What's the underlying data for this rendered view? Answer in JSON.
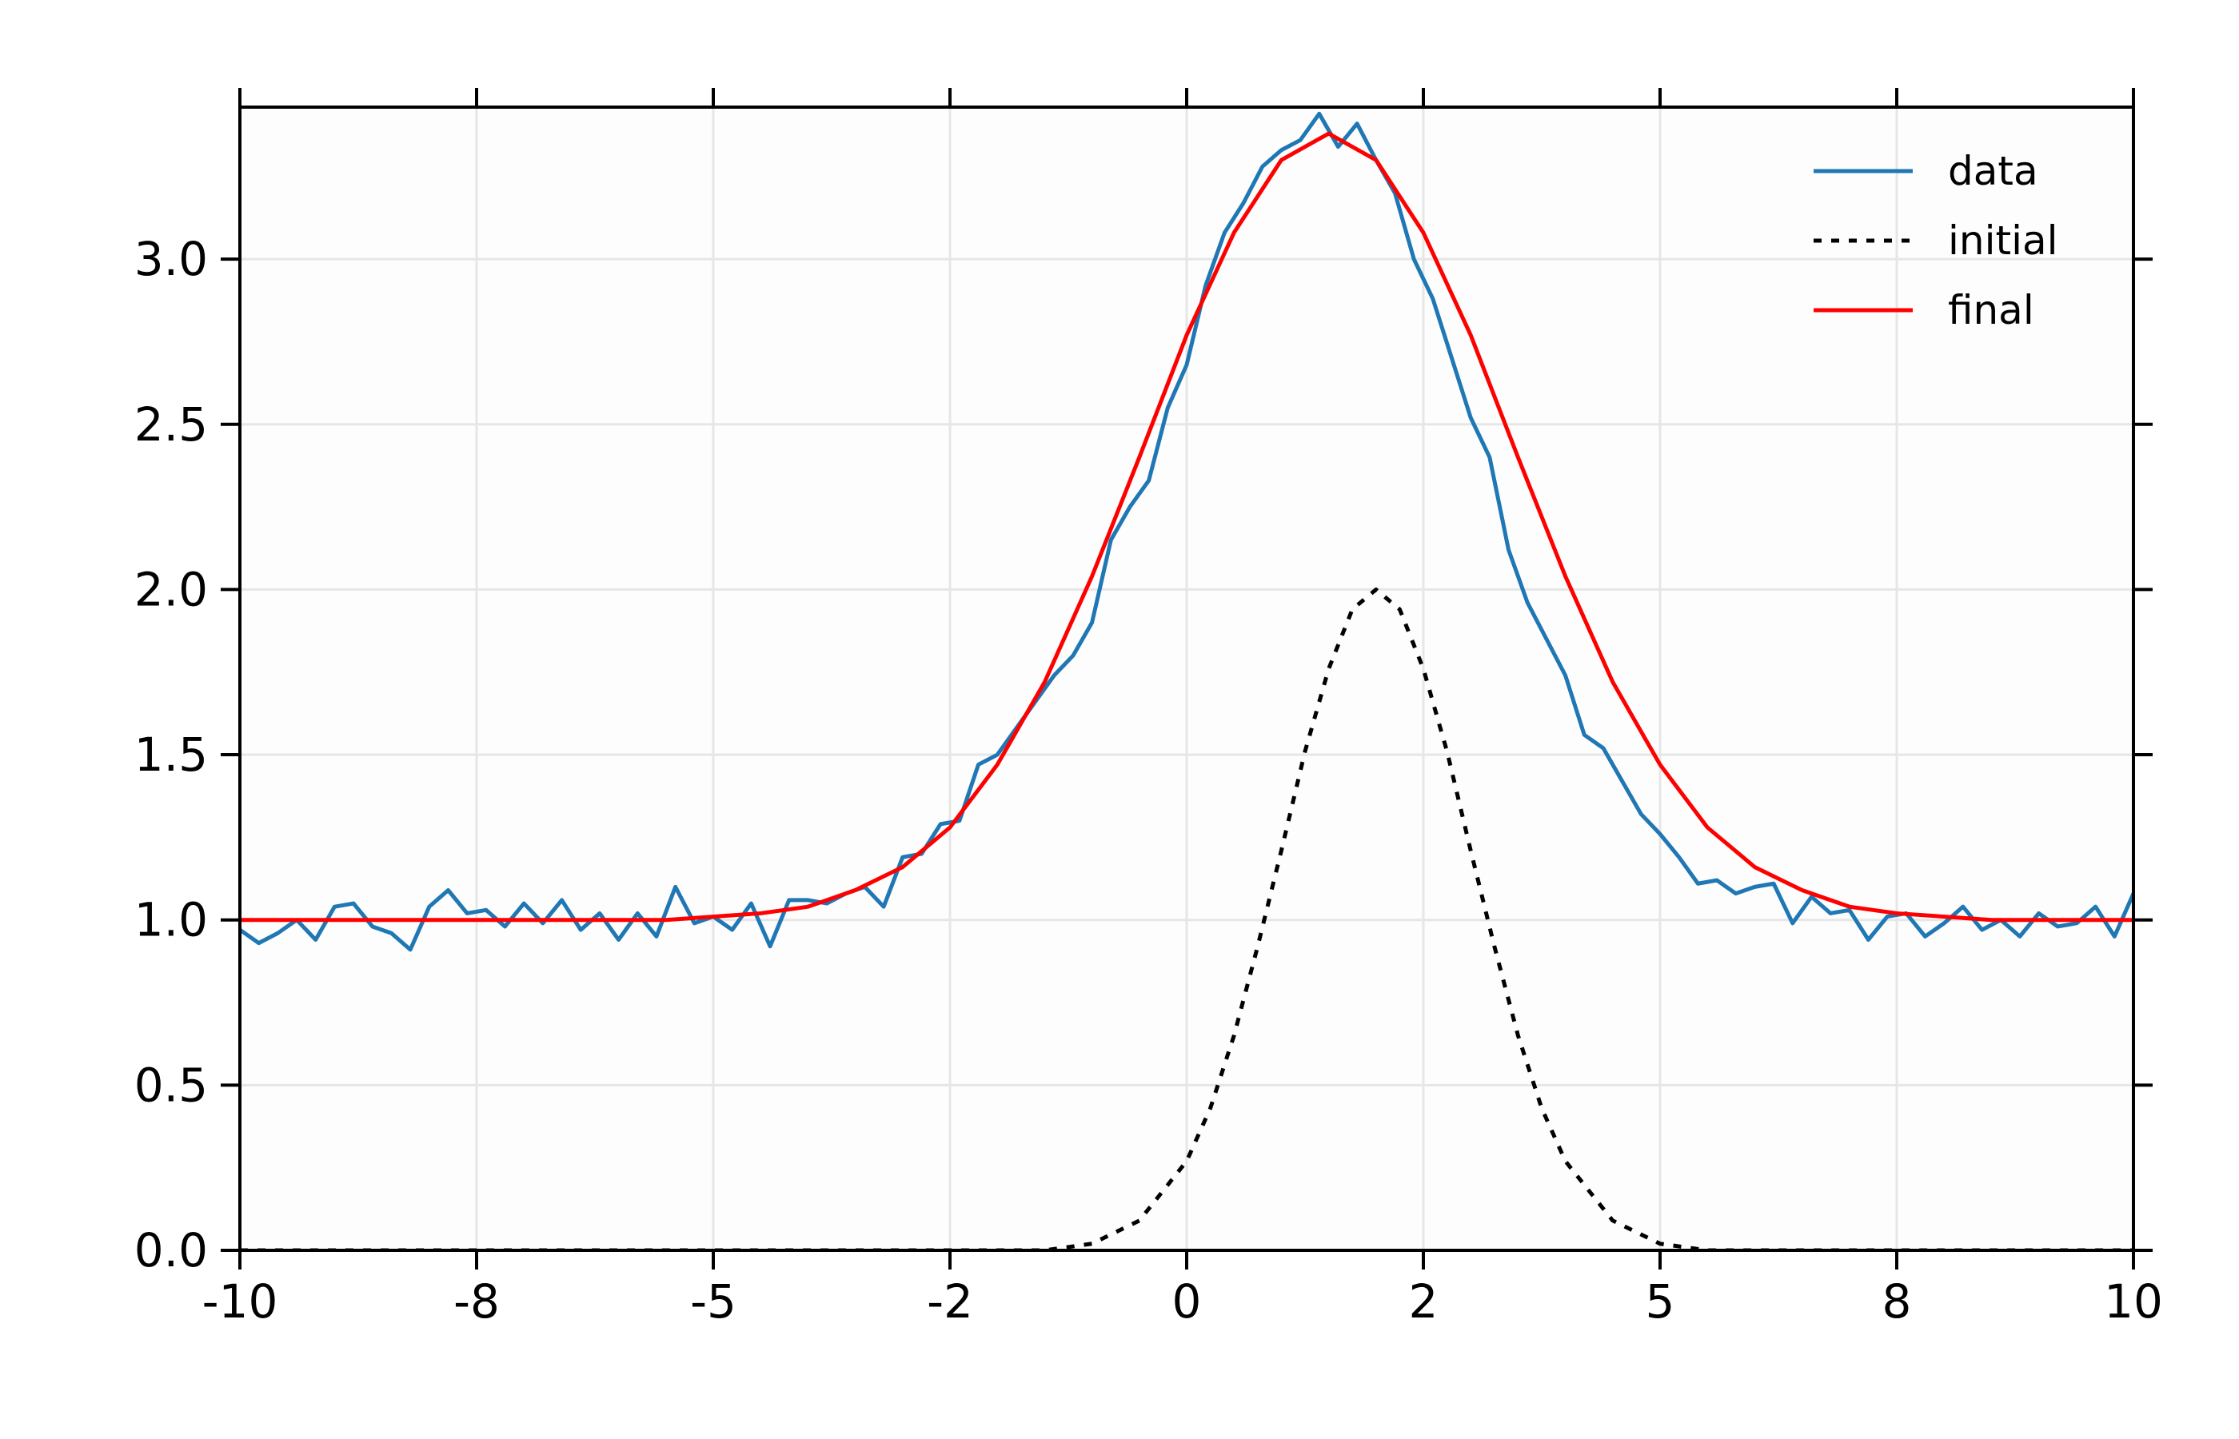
{
  "chart_data": {
    "type": "line",
    "xlim": [
      -10,
      10
    ],
    "ylim": [
      0,
      3.46
    ],
    "xticks": [
      {
        "value": -10,
        "label": "-10"
      },
      {
        "value": -7.5,
        "label": "-8"
      },
      {
        "value": -5,
        "label": "-5"
      },
      {
        "value": -2.5,
        "label": "-2"
      },
      {
        "value": 0,
        "label": "0"
      },
      {
        "value": 2.5,
        "label": "2"
      },
      {
        "value": 5,
        "label": "5"
      },
      {
        "value": 7.5,
        "label": "8"
      },
      {
        "value": 10,
        "label": "10"
      }
    ],
    "yticks": [
      {
        "value": 0,
        "label": "0.0"
      },
      0.5,
      {
        "value": 1,
        "label": "1.0"
      },
      1.5,
      {
        "value": 2,
        "label": "2.0"
      },
      2.5,
      {
        "value": 3,
        "label": "3.0"
      }
    ],
    "grid": true,
    "legend": "upper right",
    "series": [
      {
        "name": "data",
        "color": "#1f77b4",
        "linestyle": "solid",
        "x": [
          -10,
          -9.8,
          -9.6,
          -9.4,
          -9.2,
          -9,
          -8.8,
          -8.6,
          -8.4,
          -8.2,
          -8,
          -7.8,
          -7.6,
          -7.4,
          -7.2,
          -7,
          -6.8,
          -6.6,
          -6.4,
          -6.2,
          -6,
          -5.8,
          -5.6,
          -5.4,
          -5.2,
          -5,
          -4.8,
          -4.6,
          -4.4,
          -4.2,
          -4,
          -3.8,
          -3.6,
          -3.4,
          -3.2,
          -3,
          -2.8,
          -2.6,
          -2.4,
          -2.2,
          -2,
          -1.8,
          -1.6,
          -1.4,
          -1.2,
          -1,
          -0.8,
          -0.6,
          -0.4,
          -0.2,
          0,
          0.2,
          0.4,
          0.6,
          0.8,
          1,
          1.2,
          1.4,
          1.6,
          1.8,
          2,
          2.2,
          2.4,
          2.6,
          2.8,
          3,
          3.2,
          3.4,
          3.6,
          3.8,
          4,
          4.2,
          4.4,
          4.6,
          4.8,
          5,
          5.2,
          5.4,
          5.6,
          5.8,
          6,
          6.2,
          6.4,
          6.6,
          6.8,
          7,
          7.2,
          7.4,
          7.6,
          7.8,
          8,
          8.2,
          8.4,
          8.6,
          8.8,
          9,
          9.2,
          9.4,
          9.6,
          9.8,
          10
        ],
        "values": [
          0.97,
          0.93,
          0.96,
          1.0,
          0.94,
          1.04,
          1.05,
          0.98,
          0.96,
          0.91,
          1.04,
          1.09,
          1.02,
          1.03,
          0.98,
          1.05,
          0.99,
          1.06,
          0.97,
          1.02,
          0.94,
          1.02,
          0.95,
          1.1,
          0.99,
          1.01,
          0.97,
          1.05,
          0.92,
          1.06,
          1.06,
          1.05,
          1.08,
          1.1,
          1.04,
          1.19,
          1.2,
          1.29,
          1.3,
          1.47,
          1.5,
          1.58,
          1.66,
          1.74,
          1.8,
          1.9,
          2.15,
          2.25,
          2.33,
          2.55,
          2.68,
          2.92,
          3.08,
          3.17,
          3.28,
          3.33,
          3.36,
          3.44,
          3.34,
          3.41,
          3.3,
          3.2,
          3.0,
          2.88,
          2.7,
          2.52,
          2.4,
          2.12,
          1.96,
          1.85,
          1.74,
          1.56,
          1.52,
          1.42,
          1.32,
          1.26,
          1.19,
          1.11,
          1.12,
          1.08,
          1.1,
          1.11,
          0.99,
          1.07,
          1.02,
          1.03,
          0.94,
          1.01,
          1.02,
          0.95,
          0.99,
          1.04,
          0.97,
          1.0,
          0.95,
          1.02,
          0.98,
          0.99,
          1.04,
          0.95,
          1.08
        ]
      },
      {
        "name": "initial",
        "color": "#000000",
        "linestyle": "dotted",
        "x": [
          -10,
          -2,
          -1.5,
          -1,
          -0.5,
          0,
          0.25,
          0.5,
          0.75,
          1,
          1.25,
          1.5,
          1.75,
          2,
          2.25,
          2.5,
          2.75,
          3,
          3.25,
          3.5,
          3.75,
          4,
          4.5,
          5,
          5.5,
          6,
          10
        ],
        "values": [
          0,
          0,
          0,
          0.02,
          0.09,
          0.27,
          0.43,
          0.65,
          0.92,
          1.21,
          1.51,
          1.76,
          1.94,
          2.0,
          1.94,
          1.76,
          1.51,
          1.21,
          0.92,
          0.65,
          0.43,
          0.27,
          0.09,
          0.02,
          0,
          0,
          0
        ]
      },
      {
        "name": "final",
        "color": "#ff0000",
        "linestyle": "solid",
        "x": [
          -10,
          -9.5,
          -9,
          -8.5,
          -8,
          -7.5,
          -7,
          -6.5,
          -6,
          -5.5,
          -5,
          -4.5,
          -4,
          -3.5,
          -3,
          -2.5,
          -2,
          -1.5,
          -1,
          -0.5,
          0,
          0.5,
          1,
          1.5,
          2,
          2.5,
          3,
          3.5,
          4,
          4.5,
          5,
          5.5,
          6,
          6.5,
          7,
          7.5,
          8,
          8.5,
          9,
          9.5,
          10
        ],
        "values": [
          1.0,
          1.0,
          1.0,
          1.0,
          1.0,
          1.0,
          1.0,
          1.0,
          1.0,
          1.0,
          1.01,
          1.02,
          1.04,
          1.09,
          1.16,
          1.28,
          1.47,
          1.72,
          2.04,
          2.4,
          2.77,
          3.08,
          3.3,
          3.38,
          3.3,
          3.08,
          2.77,
          2.4,
          2.04,
          1.72,
          1.47,
          1.28,
          1.16,
          1.09,
          1.04,
          1.02,
          1.01,
          1.0,
          1.0,
          1.0,
          1.0
        ]
      }
    ]
  }
}
